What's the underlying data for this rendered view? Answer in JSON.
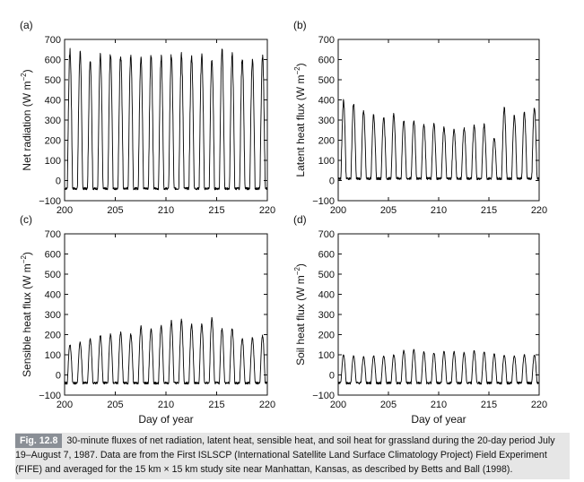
{
  "figure": {
    "caption": {
      "tag": "Fig. 12.8",
      "text": "30-minute fluxes of net radiation, latent heat, sensible heat, and soil heat for grassland during the 20-day period July 19–August 7, 1987. Data are from the First ISLSCP (International Satellite Land Surface Climatology Project) Field Experiment (FIFE) and averaged for the 15 km × 15 km study site near Manhattan, Kansas, as described by Betts and Ball (1998)."
    }
  },
  "chart_data": [
    {
      "panel": "(a)",
      "type": "line",
      "ylabel_main": "Net radiation (W m",
      "ylabel_exp": "−2",
      "ylabel_end": ")",
      "xlabel": "",
      "xlim": [
        200,
        220
      ],
      "ylim": [
        -100,
        700
      ],
      "xticks": [
        200,
        205,
        210,
        215,
        220
      ],
      "yticks": [
        -100,
        0,
        100,
        200,
        300,
        400,
        500,
        600,
        700
      ],
      "daily_peaks": [
        640,
        630,
        600,
        615,
        625,
        620,
        625,
        615,
        625,
        615,
        620,
        620,
        615,
        620,
        600,
        645,
        620,
        610,
        600,
        615
      ],
      "night_min": -40
    },
    {
      "panel": "(b)",
      "type": "line",
      "ylabel_main": "Latent heat flux (W m",
      "ylabel_exp": "−2",
      "ylabel_end": ")",
      "xlabel": "",
      "xlim": [
        200,
        220
      ],
      "ylim": [
        -100,
        700
      ],
      "xticks": [
        200,
        205,
        210,
        215,
        220
      ],
      "yticks": [
        -100,
        0,
        100,
        200,
        300,
        400,
        500,
        600,
        700
      ],
      "daily_peaks": [
        395,
        380,
        345,
        325,
        315,
        330,
        300,
        300,
        280,
        280,
        265,
        250,
        260,
        270,
        275,
        210,
        360,
        320,
        335,
        365
      ],
      "night_min": 10
    },
    {
      "panel": "(c)",
      "type": "line",
      "ylabel_main": "Sensible heat flux (W m",
      "ylabel_exp": "−2",
      "ylabel_end": ")",
      "xlabel": "Day of year",
      "xlim": [
        200,
        220
      ],
      "ylim": [
        -100,
        700
      ],
      "xticks": [
        200,
        205,
        210,
        215,
        220
      ],
      "yticks": [
        -100,
        0,
        100,
        200,
        300,
        400,
        500,
        600,
        700
      ],
      "daily_peaks": [
        150,
        160,
        180,
        195,
        200,
        210,
        200,
        240,
        225,
        245,
        265,
        270,
        250,
        250,
        280,
        230,
        230,
        180,
        185,
        195
      ],
      "night_min": -40
    },
    {
      "panel": "(d)",
      "type": "line",
      "ylabel_main": "Soil heat flux (W m",
      "ylabel_exp": "−2",
      "ylabel_end": ")",
      "xlabel": "Day of year",
      "xlim": [
        200,
        220
      ],
      "ylim": [
        -100,
        700
      ],
      "xticks": [
        200,
        205,
        210,
        215,
        220
      ],
      "yticks": [
        -100,
        0,
        100,
        200,
        300,
        400,
        500,
        600,
        700
      ],
      "daily_peaks": [
        100,
        95,
        90,
        95,
        95,
        100,
        120,
        125,
        115,
        110,
        115,
        115,
        110,
        120,
        115,
        105,
        100,
        95,
        100,
        100
      ],
      "night_min": -40
    }
  ]
}
